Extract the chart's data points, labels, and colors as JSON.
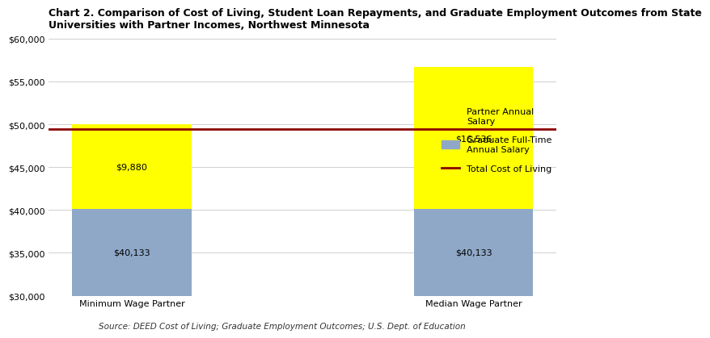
{
  "title_line1": "Chart 2. Comparison of Cost of Living, Student Loan Repayments, and Graduate Employment Outcomes from State",
  "title_line2": "Universities with Partner Incomes, Northwest Minnesota",
  "categories": [
    "Minimum Wage Partner",
    "Median Wage Partner"
  ],
  "graduate_salary": [
    40133,
    40133
  ],
  "partner_salary": [
    9880,
    16536
  ],
  "total_cost_of_living": 49459,
  "graduate_color": "#8fa8c8",
  "partner_color": "#ffff00",
  "cost_line_color": "#8b0000",
  "ylim_min": 30000,
  "ylim_max": 60000,
  "yticks": [
    30000,
    35000,
    40000,
    45000,
    50000,
    55000,
    60000
  ],
  "source_text": "Source: DEED Cost of Living; Graduate Employment Outcomes; U.S. Dept. of Education",
  "legend_partner": "Partner Annual\nSalary",
  "legend_graduate": "Graduate Full-Time\nAnnual Salary",
  "legend_cost": "Total Cost of Living",
  "bar_width": 0.35,
  "title_fontsize": 9,
  "label_fontsize": 8,
  "tick_fontsize": 8,
  "source_fontsize": 7.5,
  "legend_fontsize": 8
}
